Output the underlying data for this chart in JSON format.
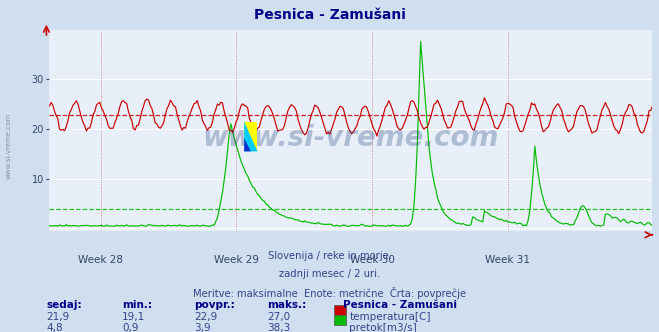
{
  "title": "Pesnica - Zamušani",
  "bg_color": "#d0dff0",
  "plot_bg_color": "#e8eff8",
  "grid_color": "#ffffff",
  "week_labels": [
    "Week 28",
    "Week 29",
    "Week 30",
    "Week 31"
  ],
  "ylim": [
    -0.5,
    40
  ],
  "yticks": [
    10,
    20,
    30
  ],
  "temp_color": "#cc0000",
  "flow_color": "#00bb00",
  "avg_temp": 22.9,
  "avg_flow": 3.9,
  "subtitle_lines": [
    "Slovenija / reke in morje.",
    "zadnji mesec / 2 uri.",
    "Meritve: maksimalne  Enote: metrične  Črta: povprečje"
  ],
  "legend_title": "Pesnica - Zamušani",
  "legend_temp_label": "temperatura[C]",
  "legend_flow_label": "pretok[m3/s]",
  "table_headers": [
    "sedaj:",
    "min.:",
    "povpr.:",
    "maks.:"
  ],
  "table_temp": [
    "21,9",
    "19,1",
    "22,9",
    "27,0"
  ],
  "table_flow": [
    "4,8",
    "0,9",
    "3,9",
    "38,3"
  ],
  "watermark": "www.si-vreme.com",
  "watermark_color": "#1a3a7a",
  "watermark_alpha": 0.28,
  "n_points": 360
}
